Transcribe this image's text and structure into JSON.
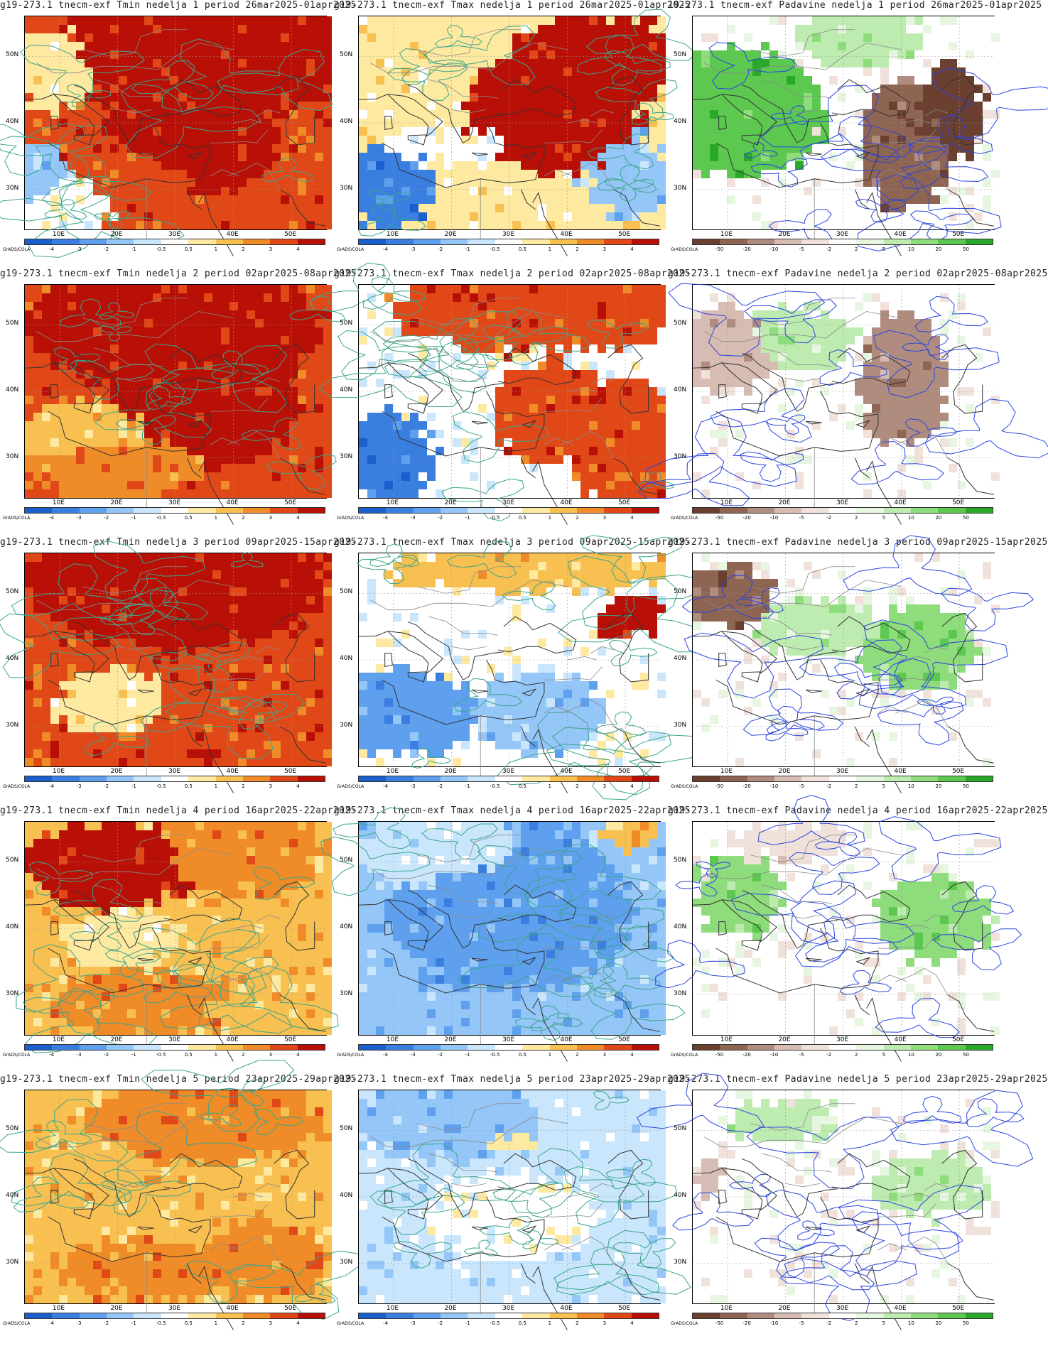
{
  "credit": "GrADS/COLA",
  "columns": [
    {
      "key": "tmin",
      "palette": "temp"
    },
    {
      "key": "tmax",
      "palette": "temp"
    },
    {
      "key": "padavine",
      "palette": "precip"
    }
  ],
  "palettes": {
    "temp": {
      "colors": [
        "#1a5fcc",
        "#3a7fe0",
        "#5ea0ee",
        "#94c6f8",
        "#c9e6fd",
        "#ffffff",
        "#fde9a0",
        "#f8c050",
        "#f08c28",
        "#e04818",
        "#b81006"
      ],
      "labels": [
        "-4",
        "-3",
        "-2",
        "-1",
        "-0.5",
        "0.5",
        "1",
        "2",
        "3",
        "4"
      ]
    },
    "precip": {
      "colors": [
        "#6b4030",
        "#8e6452",
        "#b08c7e",
        "#d6bcb2",
        "#f0e2db",
        "#ffffff",
        "#e6f6e0",
        "#bdebb0",
        "#8fdc7c",
        "#5cc850",
        "#2aa82a"
      ],
      "labels": [
        "-50",
        "-20",
        "-10",
        "-5",
        "-2",
        "2",
        "5",
        "10",
        "20",
        "50"
      ]
    }
  },
  "axes": {
    "lat_labels": [
      "50N",
      "40N",
      "30N"
    ],
    "lon_labels": [
      "10E",
      "20E",
      "30E",
      "40E",
      "50E"
    ]
  },
  "rows": [
    {
      "week": 1,
      "titles": [
        "g19-273.1  tnecm-exf Tmin  nedelja 1 period 26mar2025-01apr2025",
        "g19-273.1  tnecm-exf Tmax  nedelja 1 period 26mar2025-01apr2025",
        "19-273.1  tnecm-exf Padavine nedelja 1 period 26mar2025-01apr2025"
      ]
    },
    {
      "week": 2,
      "titles": [
        "g19-273.1  tnecm-exf Tmin  nedelja 2 period 02apr2025-08apr2025",
        "g19-273.1  tnecm-exf Tmax  nedelja 2 period 02apr2025-08apr2025",
        "g19-273.1  tnecm-exf Padavine nedelja 2 period 02apr2025-08apr2025"
      ]
    },
    {
      "week": 3,
      "titles": [
        "g19-273.1  tnecm-exf Tmin  nedelja 3 period 09apr2025-15apr2025",
        "g19-273.1  tnecm-exf Tmax  nedelja 3 period 09apr2025-15apr2025",
        "g19-273.1  tnecm-exf Padavine nedelja 3 period 09apr2025-15apr2025"
      ]
    },
    {
      "week": 4,
      "titles": [
        "g19-273.1  tnecm-exf Tmin  nedelja 4 period 16apr2025-22apr2025",
        "g19-273.1  tnecm-exf Tmax  nedelja 4 period 16apr2025-22apr2025",
        "g19-273.1  tnecm-exf Padavine nedelja 4 period 16apr2025-22apr2025"
      ]
    },
    {
      "week": 5,
      "titles": [
        "g19-273.1  tnecm-exf Tmin  nedelja 5 period 23apr2025-29apr2025",
        "g19-273.1  tnecm-exf Tmax  nedelja 5 period 23apr2025-29apr2025",
        "g19-273.1  tnecm-exf Padavine nedelja 5 period 23apr2025-29apr2025"
      ]
    }
  ],
  "anomaly_fields": [
    [
      {
        "base": 9,
        "blobs": [
          [
            0.6,
            0.15,
            0.5,
            0.35,
            10
          ],
          [
            0.55,
            0.55,
            0.3,
            0.3,
            10
          ],
          [
            0.4,
            0.75,
            0.2,
            0.2,
            9
          ],
          [
            0.15,
            0.9,
            0.15,
            0.15,
            5
          ],
          [
            0.05,
            0.75,
            0.1,
            0.15,
            3
          ],
          [
            0.1,
            0.25,
            0.15,
            0.2,
            6
          ]
        ]
      },
      {
        "base": 6,
        "blobs": [
          [
            0.65,
            0.45,
            0.3,
            0.3,
            10
          ],
          [
            0.8,
            0.2,
            0.3,
            0.2,
            10
          ],
          [
            0.1,
            0.8,
            0.15,
            0.2,
            1
          ],
          [
            0.3,
            0.6,
            0.2,
            0.1,
            5
          ],
          [
            0.9,
            0.75,
            0.15,
            0.2,
            3
          ]
        ]
      },
      {
        "base": 5,
        "blobs": [
          [
            0.15,
            0.45,
            0.3,
            0.3,
            9
          ],
          [
            0.7,
            0.6,
            0.15,
            0.3,
            1
          ],
          [
            0.85,
            0.45,
            0.12,
            0.25,
            0
          ],
          [
            0.55,
            0.1,
            0.2,
            0.15,
            7
          ]
        ]
      }
    ],
    [
      {
        "base": 9,
        "blobs": [
          [
            0.5,
            0.2,
            0.5,
            0.3,
            10
          ],
          [
            0.6,
            0.55,
            0.3,
            0.3,
            10
          ],
          [
            0.2,
            0.7,
            0.25,
            0.15,
            7
          ],
          [
            0.3,
            0.85,
            0.3,
            0.15,
            8
          ]
        ]
      },
      {
        "base": 5,
        "blobs": [
          [
            0.6,
            0.12,
            0.5,
            0.2,
            9
          ],
          [
            0.65,
            0.6,
            0.2,
            0.25,
            9
          ],
          [
            0.1,
            0.8,
            0.15,
            0.2,
            1
          ],
          [
            0.9,
            0.75,
            0.2,
            0.3,
            9
          ]
        ]
      },
      {
        "base": 5,
        "blobs": [
          [
            0.1,
            0.3,
            0.2,
            0.2,
            3
          ],
          [
            0.7,
            0.45,
            0.15,
            0.3,
            2
          ],
          [
            0.35,
            0.25,
            0.2,
            0.15,
            7
          ]
        ]
      }
    ],
    [
      {
        "base": 9,
        "blobs": [
          [
            0.5,
            0.15,
            0.5,
            0.3,
            10
          ],
          [
            0.3,
            0.7,
            0.2,
            0.15,
            6
          ],
          [
            0.7,
            0.8,
            0.35,
            0.3,
            9
          ]
        ]
      },
      {
        "base": 5,
        "blobs": [
          [
            0.15,
            0.75,
            0.25,
            0.2,
            2
          ],
          [
            0.6,
            0.75,
            0.2,
            0.2,
            3
          ],
          [
            0.6,
            0.08,
            0.5,
            0.1,
            7
          ],
          [
            0.9,
            0.3,
            0.1,
            0.1,
            10
          ]
        ]
      },
      {
        "base": 5,
        "blobs": [
          [
            0.12,
            0.2,
            0.15,
            0.15,
            1
          ],
          [
            0.75,
            0.45,
            0.2,
            0.2,
            8
          ],
          [
            0.4,
            0.35,
            0.2,
            0.15,
            7
          ]
        ]
      }
    ],
    [
      {
        "base": 7,
        "blobs": [
          [
            0.3,
            0.2,
            0.3,
            0.2,
            10
          ],
          [
            0.7,
            0.15,
            0.3,
            0.2,
            8
          ],
          [
            0.3,
            0.55,
            0.2,
            0.15,
            6
          ],
          [
            0.4,
            0.85,
            0.3,
            0.15,
            8
          ]
        ]
      },
      {
        "base": 3,
        "blobs": [
          [
            0.5,
            0.4,
            0.4,
            0.4,
            2
          ],
          [
            0.3,
            0.15,
            0.3,
            0.2,
            4
          ],
          [
            0.9,
            0.05,
            0.1,
            0.08,
            7
          ]
        ]
      },
      {
        "base": 5,
        "blobs": [
          [
            0.15,
            0.35,
            0.15,
            0.2,
            8
          ],
          [
            0.8,
            0.45,
            0.2,
            0.2,
            8
          ],
          [
            0.3,
            0.1,
            0.2,
            0.1,
            4
          ]
        ]
      }
    ],
    [
      {
        "base": 7,
        "blobs": [
          [
            0.6,
            0.15,
            0.4,
            0.2,
            8
          ],
          [
            0.4,
            0.85,
            0.3,
            0.15,
            8
          ],
          [
            0.8,
            0.8,
            0.2,
            0.2,
            8
          ]
        ]
      },
      {
        "base": 4,
        "blobs": [
          [
            0.3,
            0.15,
            0.3,
            0.2,
            3
          ],
          [
            0.5,
            0.6,
            0.3,
            0.2,
            5
          ],
          [
            0.5,
            0.25,
            0.1,
            0.05,
            6
          ]
        ]
      },
      {
        "base": 5,
        "blobs": [
          [
            0.3,
            0.15,
            0.2,
            0.1,
            7
          ],
          [
            0.8,
            0.45,
            0.2,
            0.15,
            7
          ],
          [
            0.05,
            0.4,
            0.05,
            0.1,
            3
          ]
        ]
      }
    ]
  ]
}
